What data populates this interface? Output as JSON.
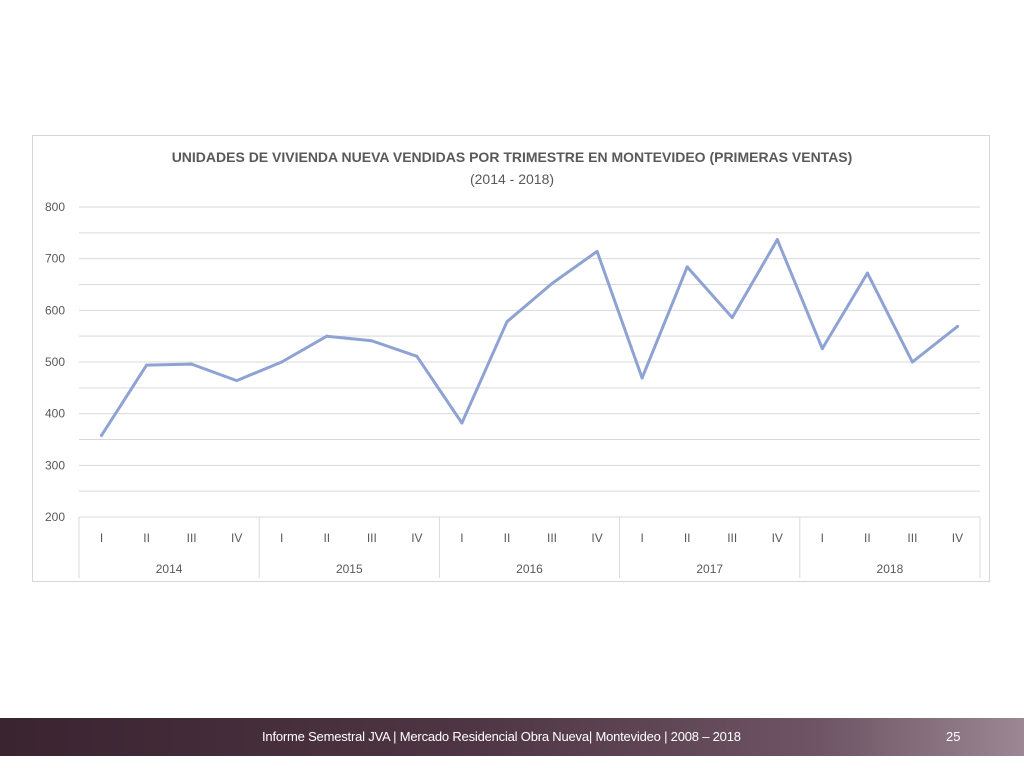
{
  "slide": {
    "footer_text": "Informe Semestral JVA | Mercado Residencial Obra Nueva| Montevideo | 2008 – 2018",
    "page_number": "25"
  },
  "colors": {
    "line": "#8fa2d4",
    "grid": "#d9d9d9",
    "text": "#595959",
    "footer": "#4e3543"
  },
  "chart_data": {
    "type": "line",
    "title": "UNIDADES DE VIVIENDA NUEVA VENDIDAS POR TRIMESTRE EN MONTEVIDEO (PRIMERAS VENTAS)",
    "subtitle": "(2014 - 2018)",
    "xlabel": "",
    "ylabel": "",
    "ylim": [
      200,
      800
    ],
    "yticks": [
      "800",
      "700",
      "600",
      "500",
      "400",
      "300",
      "200"
    ],
    "grid": true,
    "legend": "none",
    "years": [
      "2014",
      "2015",
      "2016",
      "2017",
      "2018"
    ],
    "quarters": [
      "I",
      "II",
      "III",
      "IV"
    ],
    "series": [
      {
        "values": [
          358,
          494,
          496,
          464,
          500,
          550,
          541,
          511,
          382,
          578,
          652,
          714,
          469,
          684,
          586,
          737,
          526,
          672,
          500,
          569
        ]
      }
    ]
  }
}
